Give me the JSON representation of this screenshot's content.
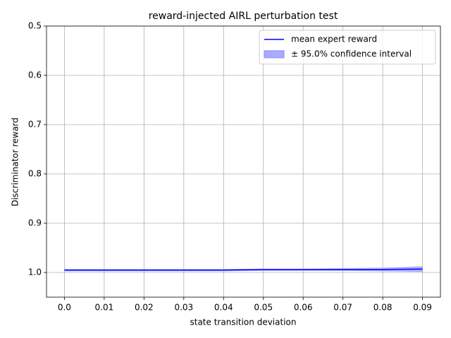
{
  "chart_data": {
    "type": "line",
    "title": "reward-injected AIRL perturbation test",
    "x_label": "state transition deviation",
    "y_label": "Discriminator reward",
    "x": [
      0,
      0.01,
      0.02,
      0.03,
      0.04,
      0.05,
      0.06,
      0.07,
      0.08,
      0.09
    ],
    "series": [
      {
        "name": "mean expert reward",
        "color": "#0000ff",
        "values": [
          0.995,
          0.995,
          0.995,
          0.995,
          0.995,
          0.994,
          0.994,
          0.994,
          0.994,
          0.993
        ]
      },
      {
        "name": "± 95.0% confidence interval",
        "color": "#aaaaff",
        "lower": [
          0.994,
          0.994,
          0.994,
          0.994,
          0.994,
          0.993,
          0.993,
          0.992,
          0.991,
          0.988
        ],
        "upper": [
          0.997,
          0.997,
          0.997,
          0.997,
          0.997,
          0.996,
          0.996,
          0.996,
          0.997,
          0.998
        ]
      }
    ],
    "xlim": [
      -0.0045,
      0.0945
    ],
    "xticks": [
      {
        "value": 0,
        "label": "0.0"
      },
      0.01,
      0.02,
      0.03,
      0.04,
      0.05,
      0.06,
      0.07,
      0.08,
      0.09
    ],
    "ylim": [
      1.05,
      0.5
    ],
    "yticks": [
      0.5,
      0.6,
      0.7,
      0.8,
      0.9,
      {
        "value": 1,
        "label": "1.0"
      }
    ],
    "grid": true,
    "legend": "upper right"
  }
}
